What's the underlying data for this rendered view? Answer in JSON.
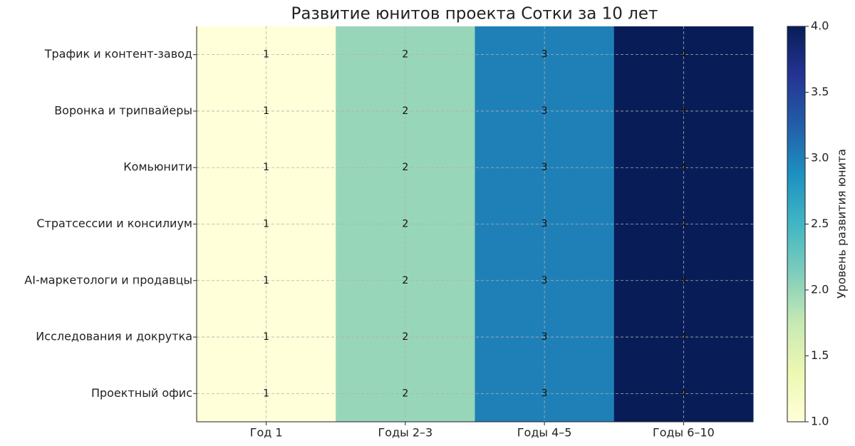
{
  "chart_data": {
    "type": "heatmap",
    "title": "Развитие юнитов проекта Сотки за 10 лет",
    "categories": [
      "Год 1",
      "Годы 2–3",
      "Годы 4–5",
      "Годы 6–10"
    ],
    "rows": [
      "Трафик и контент-завод",
      "Воронка и трипвайеры",
      "Комьюнити",
      "Стратсессии и консилиум",
      "AI-маркетологи и продавцы",
      "Исследования и докрутка",
      "Проектный офис"
    ],
    "values": [
      [
        1,
        2,
        3,
        4
      ],
      [
        1,
        2,
        3,
        4
      ],
      [
        1,
        2,
        3,
        4
      ],
      [
        1,
        2,
        3,
        4
      ],
      [
        1,
        2,
        3,
        4
      ],
      [
        1,
        2,
        3,
        4
      ],
      [
        1,
        2,
        3,
        4
      ]
    ],
    "colorscale": [
      "#ffffd9",
      "#edf8b1",
      "#c7e9b4",
      "#7fcdbb",
      "#41b6c4",
      "#1d91c0",
      "#225ea8",
      "#253494",
      "#081d58"
    ],
    "clim": [
      1,
      4
    ],
    "cticks": [
      {
        "value": 1,
        "label": "1.0"
      },
      {
        "value": 1.5,
        "label": "1.5"
      },
      {
        "value": 2,
        "label": "2.0"
      },
      {
        "value": 2.5,
        "label": "2.5"
      },
      {
        "value": 3,
        "label": "3.0"
      },
      {
        "value": 3.5,
        "label": "3.5"
      },
      {
        "value": 4,
        "label": "4.0"
      }
    ],
    "colorbar_label": "Уровень развития юнита",
    "grid": true
  }
}
